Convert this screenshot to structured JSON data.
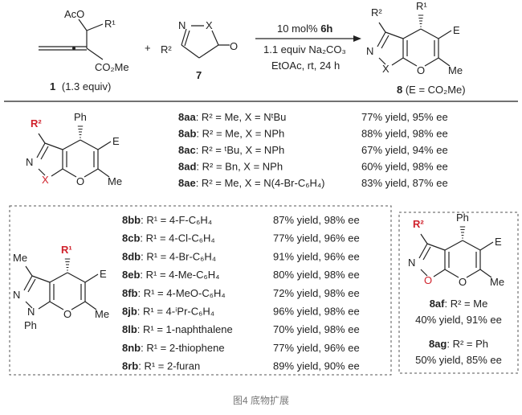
{
  "scheme": {
    "reactant1": {
      "label_aco": "AcO",
      "label_r1": "R¹",
      "label_ester": "CO₂Me",
      "caption_id": "1",
      "caption_equiv": "(1.3 equiv)"
    },
    "plus": "+",
    "reactant2": {
      "label_n": "N",
      "label_x": "X",
      "label_r2": "R²",
      "label_o": "O",
      "caption_id": "7"
    },
    "conditions": {
      "catalyst_amount": "10 mol% ",
      "catalyst_id": "6h",
      "base": "1.1 equiv Na₂CO₃",
      "solvent": "EtOAc, rt, 24 h"
    },
    "product": {
      "label_r2": "R²",
      "label_r1": "R¹",
      "label_e": "E",
      "label_me": "Me",
      "label_n": "N",
      "label_x": "X",
      "label_o": "O",
      "caption_id": "8",
      "caption_def": " (E = CO₂Me)"
    }
  },
  "section_x": {
    "structure": {
      "r2": "R²",
      "ph": "Ph",
      "e": "E",
      "n": "N",
      "x": "X",
      "o": "O",
      "me": "Me"
    },
    "rows": [
      {
        "id": "8aa",
        "desc": ": R² = Me, X = NᵗBu",
        "result": "77% yield, 95% ee"
      },
      {
        "id": "8ab",
        "desc": ": R² = Me, X = NPh",
        "result": "88% yield, 98% ee"
      },
      {
        "id": "8ac",
        "desc": ": R² = ᵗBu, X = NPh",
        "result": "67% yield, 94% ee"
      },
      {
        "id": "8ad",
        "desc": ": R² = Bn, X = NPh",
        "result": "60% yield, 98% ee"
      },
      {
        "id": "8ae",
        "desc": ": R² = Me, X = N(4-Br-C₆H₄)",
        "result": "83% yield, 87% ee"
      }
    ]
  },
  "section_r1": {
    "structure": {
      "me3": "Me",
      "r1": "R¹",
      "e": "E",
      "n": "N",
      "n1": "N",
      "ph": "Ph",
      "o": "O",
      "me": "Me"
    },
    "rows": [
      {
        "id": "8bb",
        "desc": ": R¹ = 4-F-C₆H₄",
        "result": "87% yield, 98% ee"
      },
      {
        "id": "8cb",
        "desc": ": R¹ = 4-Cl-C₆H₄",
        "result": "77% yield, 96% ee"
      },
      {
        "id": "8db",
        "desc": ": R¹ = 4-Br-C₆H₄",
        "result": "91% yield, 96% ee"
      },
      {
        "id": "8eb",
        "desc": ": R¹ = 4-Me-C₆H₄",
        "result": "80% yield, 98% ee"
      },
      {
        "id": "8fb",
        "desc": ": R¹ = 4-MeO-C₆H₄",
        "result": "72% yield, 98% ee"
      },
      {
        "id": "8jb",
        "desc": ": R¹ = 4-ⁱPr-C₆H₄",
        "result": "96% yield, 98% ee"
      },
      {
        "id": "8lb",
        "desc": ": R¹ =  1-naphthalene",
        "result": "70% yield, 98% ee"
      },
      {
        "id": "8nb",
        "desc": ": R¹ = 2-thiophene",
        "result": "77% yield, 96% ee"
      },
      {
        "id": "8rb",
        "desc": ": R¹ = 2-furan",
        "result": "89% yield, 90% ee"
      }
    ]
  },
  "section_isoxazole": {
    "structure": {
      "r2": "R²",
      "ph": "Ph",
      "e": "E",
      "n": "N",
      "o_ring": "O",
      "o": "O",
      "me": "Me"
    },
    "entries": [
      {
        "id": "8af",
        "desc": ": R² = Me",
        "result": "40% yield, 91% ee"
      },
      {
        "id": "8ag",
        "desc": ": R² = Ph",
        "result": "50% yield, 85% ee"
      }
    ]
  },
  "caption": "图4 底物扩展",
  "colors": {
    "highlight": "#d0222c",
    "text": "#222222",
    "caption": "#777777"
  }
}
